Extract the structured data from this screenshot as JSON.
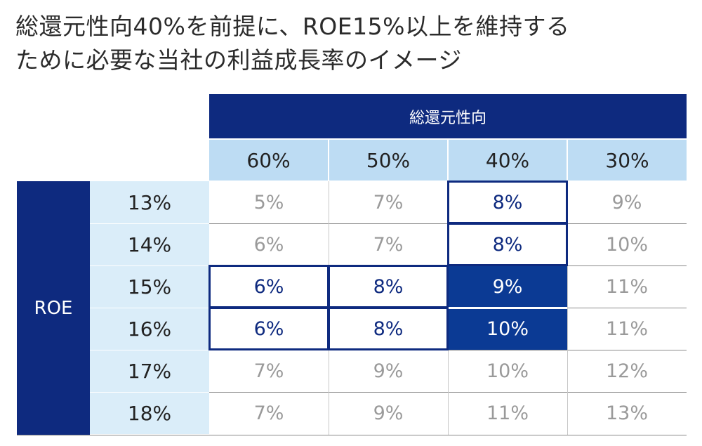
{
  "title": {
    "line1": "総還元性向40%を前提に、ROE15%以上を維持する",
    "line2": "ために必要な当社の利益成長率のイメージ"
  },
  "chart_data": {
    "type": "table",
    "column_group_label": "総還元性向",
    "row_group_label": "ROE",
    "columns": [
      "60%",
      "50%",
      "40%",
      "30%"
    ],
    "rows": [
      "13%",
      "14%",
      "15%",
      "16%",
      "17%",
      "18%"
    ],
    "values": [
      [
        "5%",
        "7%",
        "8%",
        "9%"
      ],
      [
        "6%",
        "7%",
        "8%",
        "10%"
      ],
      [
        "6%",
        "8%",
        "9%",
        "11%"
      ],
      [
        "6%",
        "8%",
        "10%",
        "11%"
      ],
      [
        "7%",
        "9%",
        "10%",
        "12%"
      ],
      [
        "7%",
        "9%",
        "11%",
        "13%"
      ]
    ]
  },
  "colors": {
    "header_dark": "#0e2a7f",
    "header_light": "#bddcf3",
    "row_label_bg": "#daedf9",
    "highlight_fill": "#0b3a94",
    "muted_text": "#9a9a9a"
  }
}
